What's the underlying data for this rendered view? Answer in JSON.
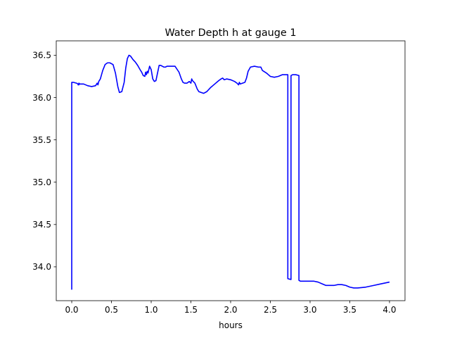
{
  "chart_data": {
    "type": "line",
    "title": "Water Depth h at gauge 1",
    "xlabel": "hours",
    "ylabel": "",
    "xlim": [
      -0.195,
      4.195
    ],
    "ylim": [
      33.6,
      36.67
    ],
    "xticks": [
      0.0,
      0.5,
      1.0,
      1.5,
      2.0,
      2.5,
      3.0,
      3.5,
      4.0
    ],
    "xtick_labels": [
      "0.0",
      "0.5",
      "1.0",
      "1.5",
      "2.0",
      "2.5",
      "3.0",
      "3.5",
      "4.0"
    ],
    "yticks": [
      34.0,
      34.5,
      35.0,
      35.5,
      36.0,
      36.5
    ],
    "ytick_labels": [
      "34.0",
      "34.5",
      "35.0",
      "35.5",
      "36.0",
      "36.5"
    ],
    "grid": false,
    "line_color": "#0000ff",
    "series": [
      {
        "x": [
          0.0,
          0.0,
          0.0,
          0.02,
          0.06,
          0.08,
          0.08,
          0.09,
          0.09,
          0.1,
          0.15,
          0.2,
          0.25,
          0.3,
          0.32,
          0.33,
          0.34,
          0.36,
          0.39,
          0.42,
          0.45,
          0.48,
          0.52,
          0.55,
          0.58,
          0.6,
          0.63,
          0.66,
          0.68,
          0.7,
          0.72,
          0.74,
          0.77,
          0.8,
          0.83,
          0.86,
          0.88,
          0.9,
          0.92,
          0.93,
          0.94,
          0.95,
          0.96,
          0.97,
          0.98,
          1.0,
          1.02,
          1.04,
          1.06,
          1.08,
          1.1,
          1.12,
          1.14,
          1.16,
          1.18,
          1.2,
          1.25,
          1.3,
          1.35,
          1.38,
          1.4,
          1.42,
          1.45,
          1.48,
          1.5,
          1.51,
          1.52,
          1.55,
          1.58,
          1.6,
          1.63,
          1.66,
          1.7,
          1.75,
          1.8,
          1.85,
          1.88,
          1.9,
          1.92,
          1.95,
          2.0,
          2.05,
          2.08,
          2.1,
          2.11,
          2.12,
          2.15,
          2.18,
          2.2,
          2.22,
          2.25,
          2.3,
          2.35,
          2.38,
          2.4,
          2.45,
          2.5,
          2.55,
          2.6,
          2.65,
          2.68,
          2.7,
          2.72,
          2.72,
          2.76,
          2.76,
          2.78,
          2.82,
          2.86,
          2.86,
          2.88,
          2.9,
          2.95,
          3.0,
          3.05,
          3.1,
          3.15,
          3.2,
          3.25,
          3.3,
          3.35,
          3.4,
          3.45,
          3.5,
          3.55,
          3.6,
          3.7,
          3.8,
          3.9,
          4.0
        ],
        "y": [
          33.73,
          36.0,
          36.18,
          36.18,
          36.17,
          36.16,
          36.15,
          36.15,
          36.17,
          36.16,
          36.16,
          36.14,
          36.13,
          36.14,
          36.17,
          36.15,
          36.19,
          36.22,
          36.32,
          36.39,
          36.41,
          36.41,
          36.39,
          36.29,
          36.13,
          36.06,
          36.07,
          36.18,
          36.35,
          36.46,
          36.5,
          36.49,
          36.45,
          36.42,
          36.38,
          36.33,
          36.3,
          36.26,
          36.25,
          36.3,
          36.27,
          36.31,
          36.29,
          36.33,
          36.37,
          36.33,
          36.22,
          36.19,
          36.2,
          36.29,
          36.38,
          36.38,
          36.37,
          36.36,
          36.36,
          36.37,
          36.37,
          36.37,
          36.3,
          36.22,
          36.18,
          36.17,
          36.17,
          36.19,
          36.17,
          36.22,
          36.2,
          36.17,
          36.1,
          36.07,
          36.06,
          36.05,
          36.07,
          36.12,
          36.16,
          36.2,
          36.22,
          36.23,
          36.21,
          36.22,
          36.21,
          36.19,
          36.17,
          36.15,
          36.18,
          36.16,
          36.17,
          36.18,
          36.23,
          36.31,
          36.36,
          36.37,
          36.36,
          36.36,
          36.32,
          36.29,
          36.25,
          36.24,
          36.25,
          36.27,
          36.27,
          36.27,
          36.27,
          33.86,
          33.85,
          36.26,
          36.27,
          36.27,
          36.26,
          33.84,
          33.83,
          33.83,
          33.83,
          33.83,
          33.83,
          33.82,
          33.8,
          33.78,
          33.78,
          33.78,
          33.79,
          33.79,
          33.78,
          33.76,
          33.75,
          33.75,
          33.76,
          33.78,
          33.8,
          33.82
        ]
      }
    ]
  }
}
